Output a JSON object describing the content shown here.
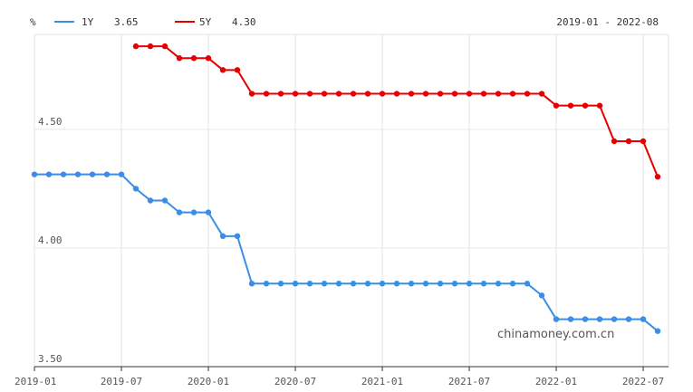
{
  "header": {
    "unit": "%",
    "date_range": "2019-01 - 2022-08"
  },
  "watermark": "chinamoney.com.cn",
  "chart_data": {
    "type": "line",
    "ylim": [
      3.5,
      4.9
    ],
    "y_ticks": [
      "4.50",
      "4.00",
      "3.50"
    ],
    "x_tick_labels": [
      "2019-01",
      "2019-07",
      "2020-01",
      "2020-07",
      "2021-01",
      "2021-07",
      "2022-01",
      "2022-07"
    ],
    "x": [
      "2019-01",
      "2019-02",
      "2019-03",
      "2019-04",
      "2019-05",
      "2019-06",
      "2019-07",
      "2019-08",
      "2019-09",
      "2019-10",
      "2019-11",
      "2019-12",
      "2020-01",
      "2020-02",
      "2020-03",
      "2020-04",
      "2020-05",
      "2020-06",
      "2020-07",
      "2020-08",
      "2020-09",
      "2020-10",
      "2020-11",
      "2020-12",
      "2021-01",
      "2021-02",
      "2021-03",
      "2021-04",
      "2021-05",
      "2021-06",
      "2021-07",
      "2021-08",
      "2021-09",
      "2021-10",
      "2021-11",
      "2021-12",
      "2022-01",
      "2022-02",
      "2022-03",
      "2022-04",
      "2022-05",
      "2022-06",
      "2022-07",
      "2022-08"
    ],
    "grid": true,
    "series": [
      {
        "name": "1Y",
        "latest": "3.65",
        "color": "#3a8ee6",
        "values": [
          4.31,
          4.31,
          4.31,
          4.31,
          4.31,
          4.31,
          4.31,
          4.25,
          4.2,
          4.2,
          4.15,
          4.15,
          4.15,
          4.05,
          4.05,
          3.85,
          3.85,
          3.85,
          3.85,
          3.85,
          3.85,
          3.85,
          3.85,
          3.85,
          3.85,
          3.85,
          3.85,
          3.85,
          3.85,
          3.85,
          3.85,
          3.85,
          3.85,
          3.85,
          3.85,
          3.8,
          3.7,
          3.7,
          3.7,
          3.7,
          3.7,
          3.7,
          3.7,
          3.65
        ]
      },
      {
        "name": "5Y",
        "latest": "4.30",
        "color": "#e60000",
        "values": [
          null,
          null,
          null,
          null,
          null,
          null,
          null,
          4.85,
          4.85,
          4.85,
          4.8,
          4.8,
          4.8,
          4.75,
          4.75,
          4.65,
          4.65,
          4.65,
          4.65,
          4.65,
          4.65,
          4.65,
          4.65,
          4.65,
          4.65,
          4.65,
          4.65,
          4.65,
          4.65,
          4.65,
          4.65,
          4.65,
          4.65,
          4.65,
          4.65,
          4.65,
          4.6,
          4.6,
          4.6,
          4.6,
          4.45,
          4.45,
          4.45,
          4.3
        ]
      }
    ]
  }
}
